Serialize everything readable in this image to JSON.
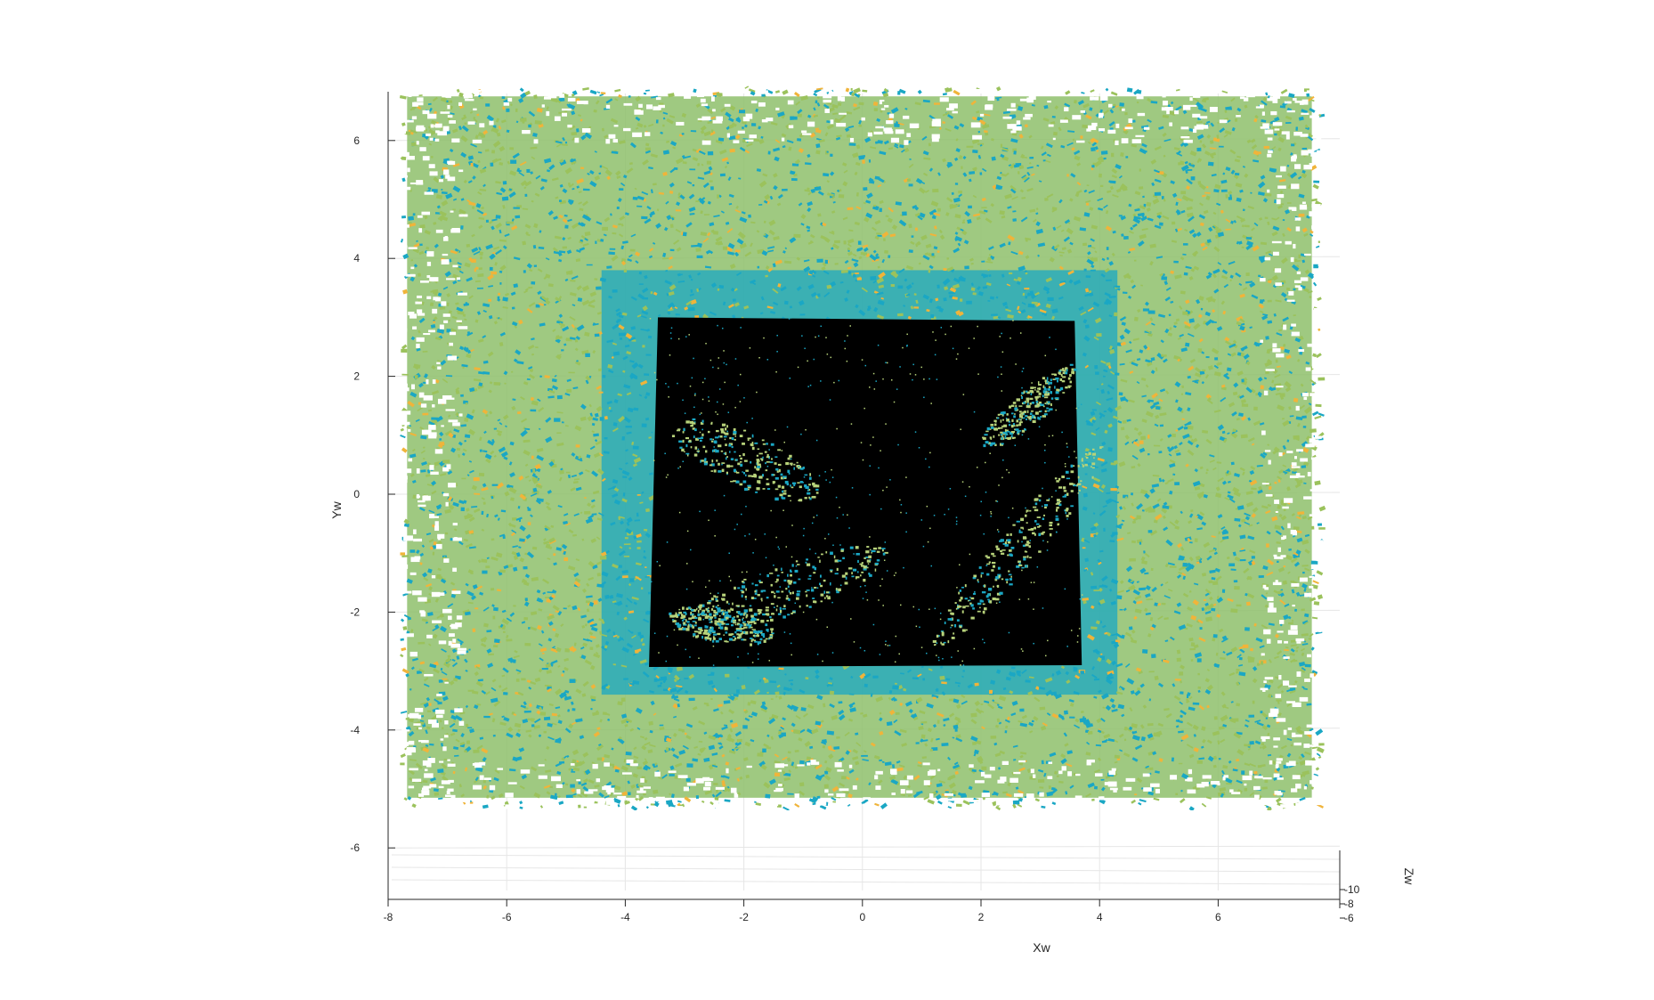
{
  "chart_data": {
    "type": "scatter",
    "title": "",
    "xlabel": "Xw",
    "ylabel": "Yw",
    "zlabel": "Zw",
    "xlim": [
      -8,
      8
    ],
    "ylim": [
      -6.8,
      6.8
    ],
    "zlim": [
      -10,
      -6
    ],
    "xticks": [
      -8,
      -6,
      -4,
      -2,
      0,
      2,
      4,
      6
    ],
    "yticks": [
      -6,
      -4,
      -2,
      0,
      2,
      4,
      6
    ],
    "zticks": [
      -10,
      -8,
      -6
    ],
    "grid": true,
    "view": "3d, nearly top-down (x-y plane) with slight tilt",
    "colors": {
      "outer_band": "#8ebf6b",
      "outer_band_alt": "#9bc25c",
      "teal_points": "#1aa7c4",
      "orange_points": "#f0b43a",
      "inner_region": "#000000",
      "inner_light": "#b7d27a"
    },
    "regions": [
      {
        "name": "outer point cloud",
        "x": [
          -7.8,
          7.7
        ],
        "y": [
          -5.3,
          6.9
        ],
        "color": "green-teal"
      },
      {
        "name": "teal border ring",
        "x": [
          -4.4,
          4.3
        ],
        "y": [
          -3.4,
          3.8
        ],
        "color": "teal"
      },
      {
        "name": "dark inner patch",
        "x": [
          -3.6,
          3.7
        ],
        "y": [
          -2.9,
          3.0
        ],
        "color": "black"
      }
    ]
  }
}
